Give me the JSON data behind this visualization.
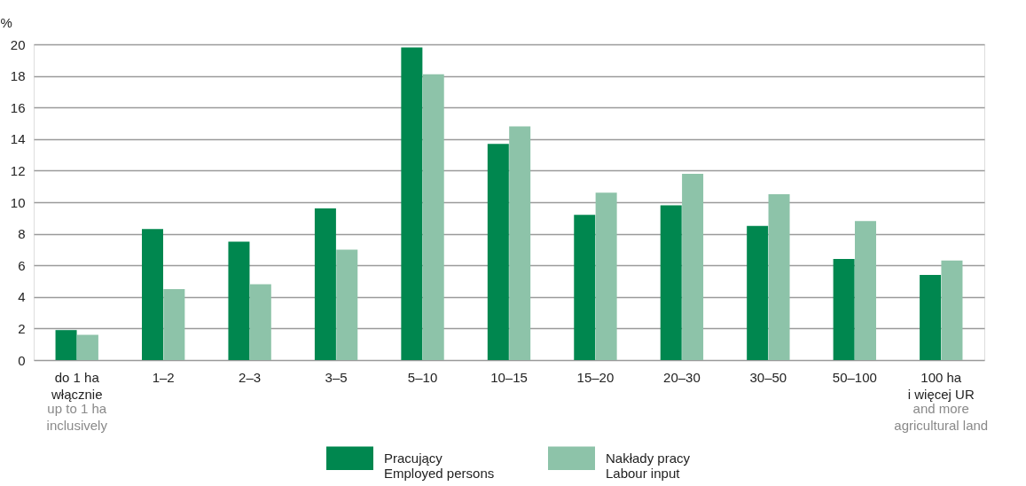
{
  "chart_data": {
    "type": "bar",
    "ylabel": "%",
    "categories": [
      "do 1 ha\nwłącznie",
      "1–2",
      "2–3",
      "3–5",
      "5–10",
      "10–15",
      "15–20",
      "20–30",
      "30–50",
      "50–100",
      "100 ha\ni więcej UR"
    ],
    "series": [
      {
        "name": "Pracujący\nEmployed persons",
        "color": "#00874f",
        "values": [
          1.9,
          8.3,
          7.5,
          9.6,
          19.8,
          13.7,
          9.2,
          9.8,
          8.5,
          6.4,
          5.4
        ]
      },
      {
        "name": "Nakłady pracy\nLabour input",
        "color": "#8dc3a9",
        "values": [
          1.6,
          4.5,
          4.8,
          7.0,
          18.1,
          14.8,
          10.6,
          11.8,
          10.5,
          8.8,
          6.3
        ]
      }
    ],
    "annotations": [
      "up to 1 ha\ninclusively",
      "and more\nagricultural land"
    ],
    "ylim": [
      0,
      20
    ],
    "yticks": [
      0,
      2,
      4,
      6,
      8,
      10,
      12,
      14,
      16,
      18,
      20
    ],
    "grid": "y",
    "legend": "bottom"
  }
}
